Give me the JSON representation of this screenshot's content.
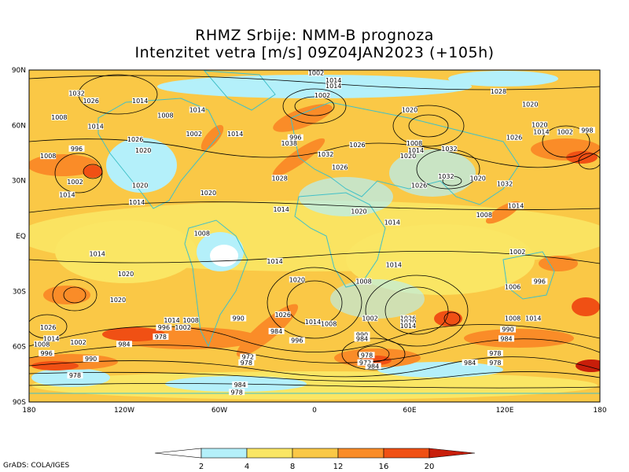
{
  "title": {
    "line1": "RHMZ Srbije: NMM-B prognoza",
    "line2": "Intenzitet vetra [m/s] 09Z04JAN2023 (+105h)"
  },
  "axes": {
    "lat_labels": [
      "90N",
      "60N",
      "30N",
      "EQ",
      "30S",
      "60S",
      "90S"
    ],
    "lon_labels": [
      "180",
      "120W",
      "60W",
      "0",
      "60E",
      "120E",
      "180"
    ]
  },
  "colorbar": {
    "ticks": [
      "2",
      "4",
      "8",
      "12",
      "16",
      "20"
    ],
    "colors": [
      "#ffffff",
      "#b4f0fa",
      "#fae664",
      "#fac846",
      "#fa8c28",
      "#f05014",
      "#c81e0a"
    ]
  },
  "isobars": [
    {
      "text": "1032",
      "lon": -150,
      "lat": 77
    },
    {
      "text": "1026",
      "lon": -141,
      "lat": 73
    },
    {
      "text": "1014",
      "lon": -110,
      "lat": 73
    },
    {
      "text": "1008",
      "lon": -161,
      "lat": 64
    },
    {
      "text": "1014",
      "lon": -138,
      "lat": 59
    },
    {
      "text": "1008",
      "lon": -94,
      "lat": 65
    },
    {
      "text": "1014",
      "lon": -74,
      "lat": 68
    },
    {
      "text": "1002",
      "lon": -76,
      "lat": 55
    },
    {
      "text": "1014",
      "lon": -50,
      "lat": 55
    },
    {
      "text": "1026",
      "lon": -113,
      "lat": 52
    },
    {
      "text": "996",
      "lon": -150,
      "lat": 47
    },
    {
      "text": "1020",
      "lon": -108,
      "lat": 46
    },
    {
      "text": "1008",
      "lon": -168,
      "lat": 43
    },
    {
      "text": "1002",
      "lon": -151,
      "lat": 29
    },
    {
      "text": "1014",
      "lon": -156,
      "lat": 22
    },
    {
      "text": "1020",
      "lon": -110,
      "lat": 27
    },
    {
      "text": "1014",
      "lon": -112,
      "lat": 18
    },
    {
      "text": "1020",
      "lon": -67,
      "lat": 23
    },
    {
      "text": "1028",
      "lon": -22,
      "lat": 31
    },
    {
      "text": "1014",
      "lon": -21,
      "lat": 14
    },
    {
      "text": "1020",
      "lon": 28,
      "lat": 13
    },
    {
      "text": "1014",
      "lon": 49,
      "lat": 7
    },
    {
      "text": "1008",
      "lon": -71,
      "lat": 1
    },
    {
      "text": "1014",
      "lon": -137,
      "lat": -10
    },
    {
      "text": "1020",
      "lon": -119,
      "lat": -21
    },
    {
      "text": "1020",
      "lon": -124,
      "lat": -35
    },
    {
      "text": "1014",
      "lon": -25,
      "lat": -14
    },
    {
      "text": "1020",
      "lon": -11,
      "lat": -24
    },
    {
      "text": "1008",
      "lon": 31,
      "lat": -25
    },
    {
      "text": "1014",
      "lon": 50,
      "lat": -16
    },
    {
      "text": "1026",
      "lon": -20,
      "lat": -43
    },
    {
      "text": "1014",
      "lon": -1,
      "lat": -47
    },
    {
      "text": "1008",
      "lon": 9,
      "lat": -48
    },
    {
      "text": "1002",
      "lon": 35,
      "lat": -45
    },
    {
      "text": "1026",
      "lon": 59,
      "lat": -45
    },
    {
      "text": "1020",
      "lon": 59,
      "lat": -47
    },
    {
      "text": "1014",
      "lon": 59,
      "lat": -49
    },
    {
      "text": "1014",
      "lon": -90,
      "lat": -46
    },
    {
      "text": "1008",
      "lon": -78,
      "lat": -46
    },
    {
      "text": "990",
      "lon": -48,
      "lat": -45
    },
    {
      "text": "1002",
      "lon": -83,
      "lat": -50
    },
    {
      "text": "996",
      "lon": -95,
      "lat": -50
    },
    {
      "text": "978",
      "lon": -97,
      "lat": -55
    },
    {
      "text": "984",
      "lon": -120,
      "lat": -59
    },
    {
      "text": "984",
      "lon": -24,
      "lat": -52
    },
    {
      "text": "996",
      "lon": -11,
      "lat": -57
    },
    {
      "text": "990",
      "lon": 30,
      "lat": -54
    },
    {
      "text": "984",
      "lon": 30,
      "lat": -56
    },
    {
      "text": "978",
      "lon": 33,
      "lat": -65
    },
    {
      "text": "972",
      "lon": 32,
      "lat": -69
    },
    {
      "text": "984",
      "lon": 37,
      "lat": -71
    },
    {
      "text": "972",
      "lon": -42,
      "lat": -66
    },
    {
      "text": "978",
      "lon": -43,
      "lat": -69
    },
    {
      "text": "1026",
      "lon": -168,
      "lat": -50
    },
    {
      "text": "1014",
      "lon": -166,
      "lat": -56
    },
    {
      "text": "1002",
      "lon": -149,
      "lat": -58
    },
    {
      "text": "1008",
      "lon": -172,
      "lat": -59
    },
    {
      "text": "996",
      "lon": -169,
      "lat": -64
    },
    {
      "text": "990",
      "lon": -141,
      "lat": -67
    },
    {
      "text": "978",
      "lon": -151,
      "lat": -76
    },
    {
      "text": "984",
      "lon": -47,
      "lat": -81
    },
    {
      "text": "978",
      "lon": -49,
      "lat": -85
    },
    {
      "text": "1026",
      "lon": 27,
      "lat": 49
    },
    {
      "text": "1032",
      "lon": 7,
      "lat": 44
    },
    {
      "text": "1026",
      "lon": 16,
      "lat": 37
    },
    {
      "text": "1038",
      "lon": -16,
      "lat": 50
    },
    {
      "text": "996",
      "lon": -12,
      "lat": 53
    },
    {
      "text": "1002",
      "lon": 5,
      "lat": 76
    },
    {
      "text": "1014",
      "lon": 12,
      "lat": 81
    },
    {
      "text": "1020",
      "lon": 60,
      "lat": 68
    },
    {
      "text": "1008",
      "lon": 63,
      "lat": 50
    },
    {
      "text": "1014",
      "lon": 64,
      "lat": 46
    },
    {
      "text": "1020",
      "lon": 59,
      "lat": 43
    },
    {
      "text": "1032",
      "lon": 85,
      "lat": 47
    },
    {
      "text": "1032",
      "lon": 83,
      "lat": 32
    },
    {
      "text": "1020",
      "lon": 103,
      "lat": 31
    },
    {
      "text": "1032",
      "lon": 120,
      "lat": 28
    },
    {
      "text": "1026",
      "lon": 66,
      "lat": 27
    },
    {
      "text": "1028",
      "lon": 116,
      "lat": 78
    },
    {
      "text": "1020",
      "lon": 136,
      "lat": 71
    },
    {
      "text": "1020",
      "lon": 142,
      "lat": 60
    },
    {
      "text": "1014",
      "lon": 143,
      "lat": 56
    },
    {
      "text": "1002",
      "lon": 158,
      "lat": 56
    },
    {
      "text": "998",
      "lon": 172,
      "lat": 57
    },
    {
      "text": "1026",
      "lon": 126,
      "lat": 53
    },
    {
      "text": "1014",
      "lon": 127,
      "lat": 16
    },
    {
      "text": "1008",
      "lon": 107,
      "lat": 11
    },
    {
      "text": "1002",
      "lon": 128,
      "lat": -9
    },
    {
      "text": "1006",
      "lon": 125,
      "lat": -28
    },
    {
      "text": "996",
      "lon": 142,
      "lat": -25
    },
    {
      "text": "1008",
      "lon": 125,
      "lat": -45
    },
    {
      "text": "1014",
      "lon": 138,
      "lat": -45
    },
    {
      "text": "990",
      "lon": 122,
      "lat": -51
    },
    {
      "text": "984",
      "lon": 121,
      "lat": -56
    },
    {
      "text": "978",
      "lon": 114,
      "lat": -64
    },
    {
      "text": "984",
      "lon": 98,
      "lat": -69
    },
    {
      "text": "978",
      "lon": 114,
      "lat": -69
    },
    {
      "text": "1002",
      "lon": 1,
      "lat": 88
    },
    {
      "text": "1014",
      "lon": 12,
      "lat": 84
    }
  ],
  "credit": "GrADS: COLA/IGES"
}
